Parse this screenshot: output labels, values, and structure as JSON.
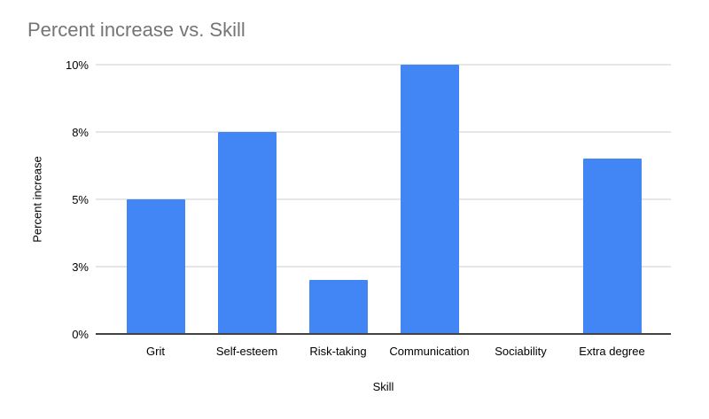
{
  "chart": {
    "title": "Percent increase vs. Skill",
    "x_axis_title": "Skill",
    "y_axis_title": "Percent increase"
  },
  "chart_data": {
    "type": "bar",
    "title": "Percent increase vs. Skill",
    "xlabel": "Skill",
    "ylabel": "Percent increase",
    "categories": [
      "Grit",
      "Self-esteem",
      "Risk-taking",
      "Communication",
      "Sociability",
      "Extra degree"
    ],
    "values": [
      5,
      7.5,
      2,
      10,
      0,
      6.5
    ],
    "ylim": [
      0,
      10
    ],
    "y_ticks": [
      {
        "value": 0,
        "label": "0%"
      },
      {
        "value": 2.5,
        "label": "3%"
      },
      {
        "value": 5,
        "label": "5%"
      },
      {
        "value": 7.5,
        "label": "8%"
      },
      {
        "value": 10,
        "label": "10%"
      }
    ],
    "grid": true,
    "legend_position": "none",
    "colors": {
      "bar": "#4285f4",
      "title_text": "#757575",
      "axis_text": "#000000",
      "gridline": "#e6e6e6",
      "axis_line": "#424242",
      "background": "#ffffff"
    }
  }
}
